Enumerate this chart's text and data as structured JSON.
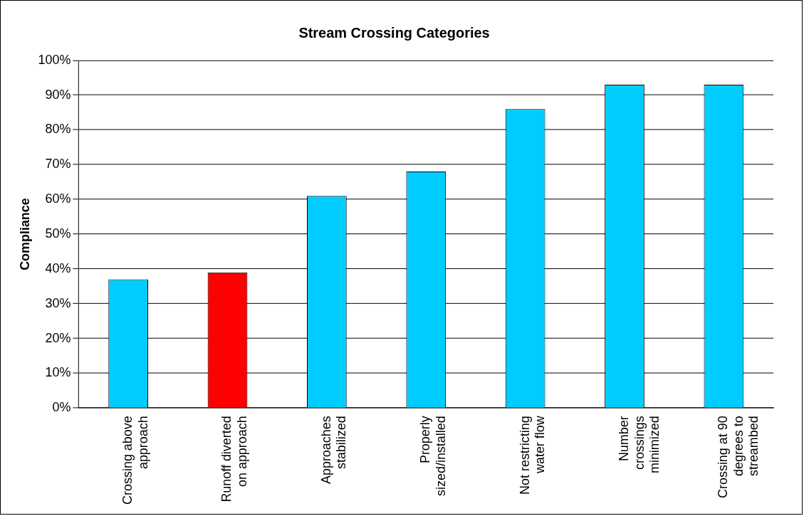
{
  "chart_data": {
    "type": "bar",
    "title": "Stream Crossing Categories",
    "ylabel": "Compliance",
    "categories": [
      "Crossing above approach",
      "Runoff diverted on approach",
      "Approaches stabilized",
      "Properly sized/installed",
      "Not restricting water flow",
      "Number crossings minimized",
      "Crossing at 90 degrees to streambed"
    ],
    "values": [
      37,
      39,
      61,
      68,
      86,
      93,
      93
    ],
    "colors": [
      "#00ccff",
      "#ff0000",
      "#00ccff",
      "#00ccff",
      "#00ccff",
      "#00ccff",
      "#00ccff"
    ],
    "ylim": [
      0,
      100
    ],
    "yticks": [
      {
        "value": 0,
        "label": "0%"
      },
      {
        "value": 10,
        "label": "10%"
      },
      {
        "value": 20,
        "label": "20%"
      },
      {
        "value": 30,
        "label": "30%"
      },
      {
        "value": 40,
        "label": "40%"
      },
      {
        "value": 50,
        "label": "50%"
      },
      {
        "value": 60,
        "label": "60%"
      },
      {
        "value": 70,
        "label": "70%"
      },
      {
        "value": 80,
        "label": "80%"
      },
      {
        "value": 90,
        "label": "90%"
      },
      {
        "value": 100,
        "label": "100%"
      }
    ],
    "grid": "y",
    "legend": false
  }
}
